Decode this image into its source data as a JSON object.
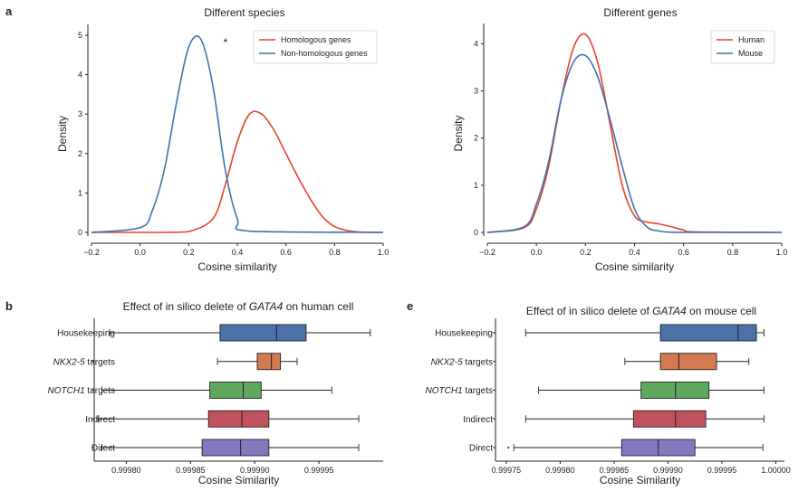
{
  "panels": {
    "a": "a",
    "b": "b",
    "e": "e"
  },
  "chart_data": [
    {
      "id": "kde-species",
      "type": "line",
      "title": "Different species",
      "xlabel": "Cosine similarity",
      "ylabel": "Density",
      "xlim": [
        -0.2,
        1.0
      ],
      "ylim": [
        0,
        5
      ],
      "xticks": [
        "−0.2",
        "0.0",
        "0.2",
        "0.4",
        "0.6",
        "0.8",
        "1.0"
      ],
      "yticks": [
        "0",
        "1",
        "2",
        "3",
        "4",
        "5"
      ],
      "legend_position": "top-right",
      "annotation": "*",
      "series": [
        {
          "name": "Homologous genes",
          "color": "#e8432a",
          "x": [
            -0.2,
            0.1,
            0.2,
            0.3,
            0.35,
            0.4,
            0.45,
            0.5,
            0.55,
            0.6,
            0.65,
            0.7,
            0.75,
            0.8,
            0.85,
            0.9,
            1.0
          ],
          "y": [
            0.0,
            0.0,
            0.02,
            0.35,
            1.2,
            2.3,
            3.0,
            3.0,
            2.6,
            2.0,
            1.4,
            0.85,
            0.4,
            0.15,
            0.05,
            0.01,
            0.0
          ]
        },
        {
          "name": "Non-homologous genes",
          "color": "#3b75af",
          "x": [
            -0.2,
            0.0,
            0.05,
            0.1,
            0.15,
            0.2,
            0.25,
            0.3,
            0.35,
            0.4,
            0.45,
            1.0
          ],
          "y": [
            0.0,
            0.12,
            0.55,
            1.6,
            3.3,
            4.7,
            4.9,
            3.7,
            1.6,
            0.35,
            0.03,
            0.0
          ]
        }
      ]
    },
    {
      "id": "kde-genes",
      "type": "line",
      "title": "Different genes",
      "xlabel": "Cosine similarity",
      "ylabel": "Density",
      "xlim": [
        -0.2,
        1.0
      ],
      "ylim": [
        0,
        4.2
      ],
      "xticks": [
        "−0.2",
        "0.0",
        "0.2",
        "0.4",
        "0.6",
        "0.8",
        "1.0"
      ],
      "yticks": [
        "0",
        "1",
        "2",
        "3",
        "4"
      ],
      "legend_position": "top-right",
      "series": [
        {
          "name": "Human",
          "color": "#e8432a",
          "x": [
            -0.2,
            -0.05,
            0.0,
            0.05,
            0.1,
            0.15,
            0.2,
            0.25,
            0.3,
            0.35,
            0.4,
            0.45,
            0.5,
            0.55,
            0.6,
            0.65,
            1.0
          ],
          "y": [
            0.0,
            0.1,
            0.5,
            1.4,
            2.8,
            3.9,
            4.2,
            3.6,
            2.3,
            1.0,
            0.35,
            0.22,
            0.18,
            0.12,
            0.05,
            0.01,
            0.0
          ]
        },
        {
          "name": "Mouse",
          "color": "#3b75af",
          "x": [
            -0.2,
            -0.05,
            0.0,
            0.05,
            0.1,
            0.15,
            0.2,
            0.25,
            0.3,
            0.35,
            0.4,
            0.45,
            0.5,
            0.6,
            1.0
          ],
          "y": [
            0.0,
            0.12,
            0.6,
            1.5,
            2.8,
            3.6,
            3.75,
            3.3,
            2.4,
            1.4,
            0.5,
            0.12,
            0.03,
            0.0,
            0.0
          ]
        }
      ]
    },
    {
      "id": "box-human",
      "type": "box",
      "title_prefix": "Effect of in silico delete of ",
      "title_gene": "GATA4",
      "title_suffix": " on human cell",
      "xlabel": "Cosine Similarity",
      "xlim": [
        0.999775,
        1.0
      ],
      "xticks": [
        0.9998,
        0.99985,
        0.9999,
        0.99995
      ],
      "xtick_labels": [
        "0.99980",
        "0.99985",
        "0.99990",
        "0.99995"
      ],
      "categories": [
        {
          "pre": "",
          "ital": "",
          "post": "Housekeeping",
          "color": "#4a72a8",
          "whislo": 0.999787,
          "q1": 0.999873,
          "med": 0.999917,
          "q3": 0.99994,
          "whishi": 0.99999,
          "fliers": []
        },
        {
          "pre": "",
          "ital": "NKX2-5",
          "post": " targets",
          "color": "#d27a50",
          "whislo": 0.999871,
          "q1": 0.999902,
          "med": 0.999913,
          "q3": 0.99992,
          "whishi": 0.999933,
          "fliers": []
        },
        {
          "pre": "",
          "ital": "NOTCH1",
          "post": " targets",
          "color": "#5ea95e",
          "whislo": 0.999781,
          "q1": 0.999865,
          "med": 0.999891,
          "q3": 0.999905,
          "whishi": 0.99996,
          "fliers": []
        },
        {
          "pre": "",
          "ital": "",
          "post": "Indirect",
          "color": "#c0525d",
          "whislo": 0.999778,
          "q1": 0.999864,
          "med": 0.99989,
          "q3": 0.999911,
          "whishi": 0.999981,
          "fliers": []
        },
        {
          "pre": "",
          "ital": "",
          "post": "Direct",
          "color": "#8379c1",
          "whislo": 0.999781,
          "q1": 0.999859,
          "med": 0.999889,
          "q3": 0.999911,
          "whishi": 0.999981,
          "fliers": [
            0.999788
          ]
        }
      ]
    },
    {
      "id": "box-mouse",
      "type": "box",
      "title_prefix": "Effect of in silico delete of ",
      "title_gene": "GATA4",
      "title_suffix": " on mouse cell",
      "xlabel": "Cosine Similarity",
      "xlim": [
        0.99974,
        1.000008
      ],
      "xticks": [
        0.99975,
        0.9998,
        0.99985,
        0.9999,
        0.99995,
        1.0
      ],
      "xtick_labels": [
        "0.99975",
        "0.99980",
        "0.99985",
        "0.99990",
        "0.99995",
        "1.00000"
      ],
      "categories": [
        {
          "pre": "",
          "ital": "",
          "post": "Housekeeping",
          "color": "#4a72a8",
          "whislo": 0.999768,
          "q1": 0.999893,
          "med": 0.999965,
          "q3": 0.999982,
          "whishi": 0.999989,
          "fliers": []
        },
        {
          "pre": "",
          "ital": "NKX2-5",
          "post": " targets",
          "color": "#d27a50",
          "whislo": 0.99986,
          "q1": 0.999893,
          "med": 0.99991,
          "q3": 0.999945,
          "whishi": 0.999975,
          "fliers": []
        },
        {
          "pre": "",
          "ital": "NOTCH1",
          "post": " targets",
          "color": "#5ea95e",
          "whislo": 0.99978,
          "q1": 0.999875,
          "med": 0.999907,
          "q3": 0.999938,
          "whishi": 0.999989,
          "fliers": []
        },
        {
          "pre": "",
          "ital": "",
          "post": "Indirect",
          "color": "#c0525d",
          "whislo": 0.999768,
          "q1": 0.999868,
          "med": 0.999907,
          "q3": 0.999935,
          "whishi": 0.999989,
          "fliers": []
        },
        {
          "pre": "",
          "ital": "",
          "post": "Direct",
          "color": "#8379c1",
          "whislo": 0.999757,
          "q1": 0.999857,
          "med": 0.999891,
          "q3": 0.999925,
          "whishi": 0.999988,
          "fliers": [
            0.999752
          ]
        }
      ]
    }
  ]
}
